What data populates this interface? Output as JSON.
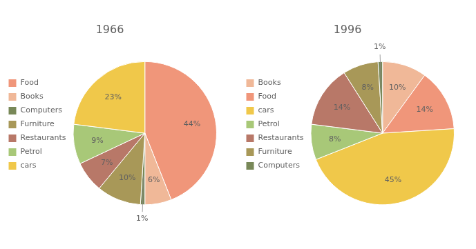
{
  "chart_data": [
    {
      "type": "pie",
      "title": "1966",
      "categories": [
        "Food",
        "Books",
        "Computers",
        "Furniture",
        "Restaurants",
        "Petrol",
        "cars"
      ],
      "values": [
        44,
        6,
        1,
        10,
        7,
        9,
        23
      ],
      "value_labels": [
        "44%",
        "6%",
        "1%",
        "10%",
        "7%",
        "9%",
        "23%"
      ],
      "colors": [
        "#F0967A",
        "#F0B898",
        "#788858",
        "#A89858",
        "#B87868",
        "#A8C878",
        "#F0C84A"
      ],
      "data_labels": true,
      "legend": "left"
    },
    {
      "type": "pie",
      "title": "1996",
      "categories": [
        "Books",
        "Food",
        "cars",
        "Petrol",
        "Restaurants",
        "Furniture",
        "Computers"
      ],
      "values": [
        10,
        14,
        45,
        8,
        14,
        8,
        1
      ],
      "value_labels": [
        "10%",
        "14%",
        "45%",
        "8%",
        "14%",
        "8%",
        "1%"
      ],
      "colors": [
        "#F0B898",
        "#F0967A",
        "#F0C84A",
        "#A8C878",
        "#B87868",
        "#A89858",
        "#788858"
      ],
      "data_labels": true,
      "legend": "left"
    }
  ]
}
